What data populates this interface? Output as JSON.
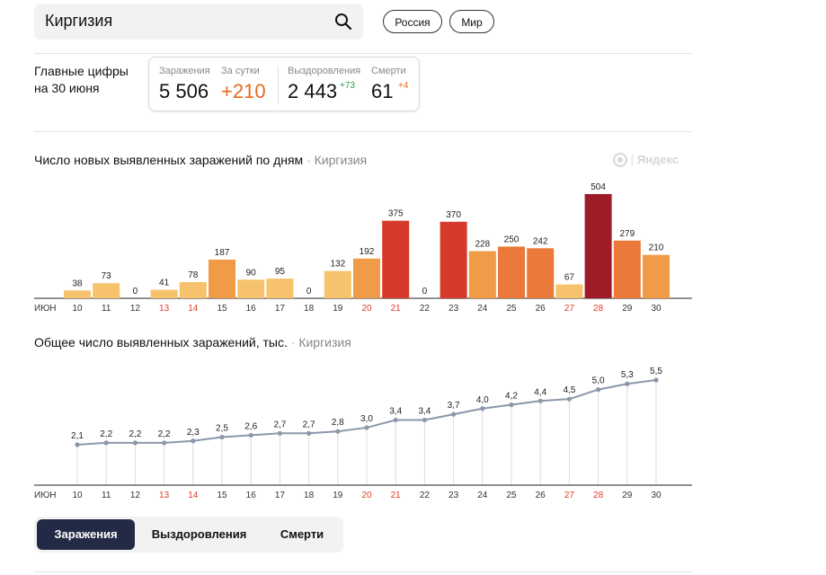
{
  "search": {
    "value": "Киргизия"
  },
  "scope_buttons": [
    {
      "label": "Россия"
    },
    {
      "label": "Мир"
    }
  ],
  "summary": {
    "label": "Главные цифры на 30 июня",
    "infections": {
      "label": "Заражения",
      "value": "5 506"
    },
    "per_day": {
      "label": "За сутки",
      "value": "+210"
    },
    "recovered": {
      "label": "Выздоровления",
      "value": "2 443",
      "delta": "+73"
    },
    "deaths": {
      "label": "Смерти",
      "value": "61",
      "delta": "+4"
    }
  },
  "brand": "Яндекс",
  "colors": {
    "low": "#f6c26b",
    "mid": "#ef9b48",
    "mid_high": "#eb7a3a",
    "high": "#d63a2a",
    "max": "#9e1b28",
    "line": "#8c97aa",
    "weekend": "#e03b2a",
    "active_tab": "#232a45"
  },
  "chart_data": [
    {
      "type": "bar",
      "title": "Число новых выявленных заражений по дням",
      "region": "Киргизия",
      "month_label": "июн",
      "categories": [
        "10",
        "11",
        "12",
        "13",
        "14",
        "15",
        "16",
        "17",
        "18",
        "19",
        "20",
        "21",
        "22",
        "23",
        "24",
        "25",
        "26",
        "27",
        "28",
        "29",
        "30"
      ],
      "values": [
        38,
        73,
        0,
        41,
        78,
        187,
        90,
        95,
        0,
        132,
        192,
        375,
        0,
        370,
        228,
        250,
        242,
        67,
        504,
        279,
        210
      ],
      "weekend_days": [
        "13",
        "14",
        "20",
        "21",
        "27",
        "28"
      ],
      "ylim": [
        0,
        504
      ],
      "grid": false
    },
    {
      "type": "line",
      "title": "Общее число выявленных заражений, тыс.",
      "region": "Киргизия",
      "month_label": "июн",
      "categories": [
        "10",
        "11",
        "12",
        "13",
        "14",
        "15",
        "16",
        "17",
        "18",
        "19",
        "20",
        "21",
        "22",
        "23",
        "24",
        "25",
        "26",
        "27",
        "28",
        "29",
        "30"
      ],
      "values": [
        2.1,
        2.2,
        2.2,
        2.2,
        2.3,
        2.5,
        2.6,
        2.7,
        2.7,
        2.8,
        3.0,
        3.4,
        3.4,
        3.7,
        4.0,
        4.2,
        4.4,
        4.5,
        5.0,
        5.3,
        5.5
      ],
      "labels": [
        "2,1",
        "2,2",
        "2,2",
        "2,2",
        "2,3",
        "2,5",
        "2,6",
        "2,7",
        "2,7",
        "2,8",
        "3,0",
        "3,4",
        "3,4",
        "3,7",
        "4,0",
        "4,2",
        "4,4",
        "4,5",
        "5,0",
        "5,3",
        "5,5"
      ],
      "weekend_days": [
        "13",
        "14",
        "20",
        "21",
        "27",
        "28"
      ],
      "grid": false
    }
  ],
  "tabs": [
    {
      "label": "Заражения",
      "active": true
    },
    {
      "label": "Выздоровления",
      "active": false
    },
    {
      "label": "Смерти",
      "active": false
    }
  ]
}
